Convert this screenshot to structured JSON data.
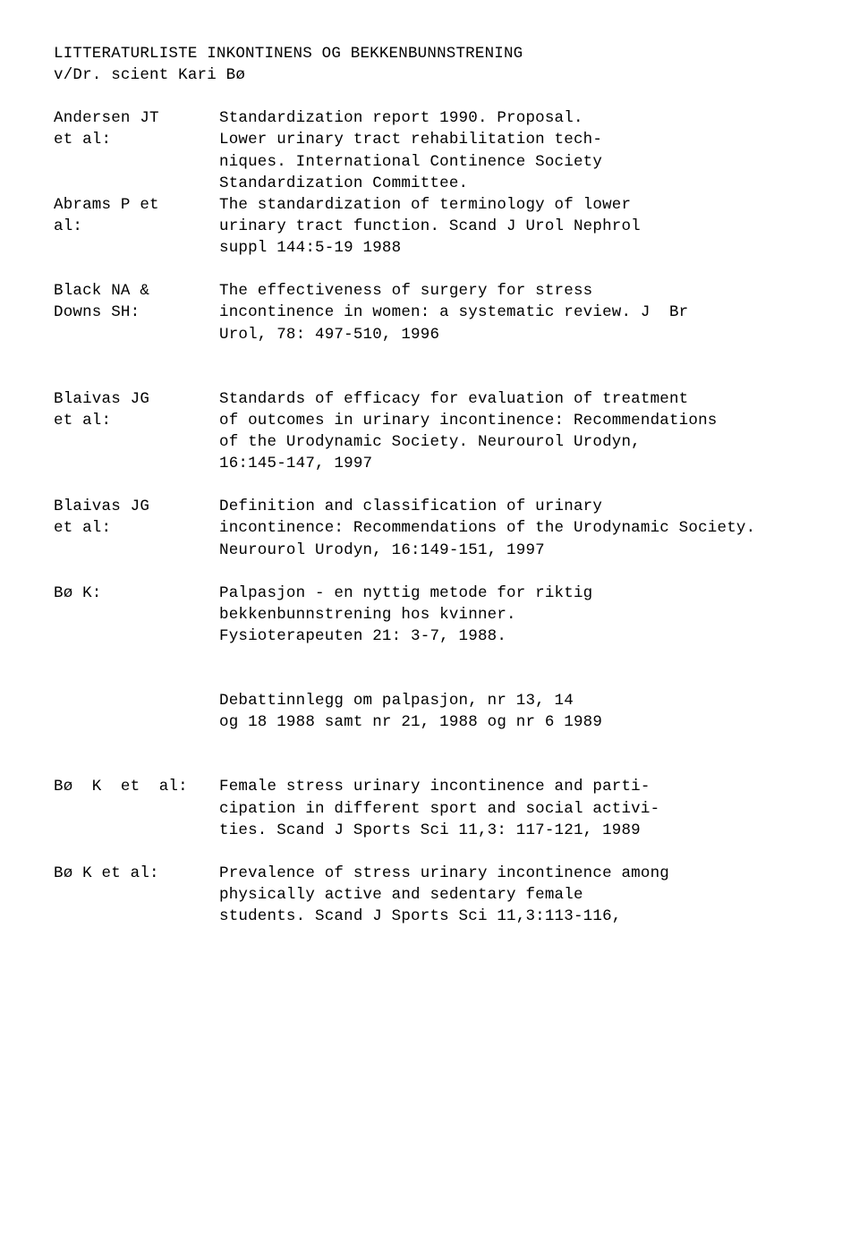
{
  "title_line1": "LITTERATURLISTE INKONTINENS OG BEKKENBUNNSTRENING",
  "title_line2": "v/Dr. scient Kari Bø",
  "entries": [
    {
      "author": "Andersen JT\net al:",
      "desc": "Standardization report 1990. Proposal.\nLower urinary tract rehabilitation tech-\nniques. International Continence Society\nStandardization Committee."
    },
    {
      "author": "Abrams P et\nal:",
      "desc": "The standardization of terminology of lower\nurinary tract function. Scand J Urol Nephrol\nsuppl 144:5-19 1988"
    },
    {
      "author": "Black NA &\nDowns SH:",
      "desc": "The effectiveness of surgery for stress\nincontinence in women: a systematic review. J  Br\nUrol, 78: 497-510, 1996"
    },
    {
      "author": "Blaivas JG\net al:",
      "desc": "Standards of efficacy for evaluation of treatment\nof outcomes in urinary incontinence: Recommendations\nof the Urodynamic Society. Neurourol Urodyn,\n16:145-147, 1997"
    },
    {
      "author": "Blaivas JG\net al:",
      "desc": "Definition and classification of urinary\nincontinence: Recommendations of the Urodynamic Society.\nNeurourol Urodyn, 16:149-151, 1997"
    },
    {
      "author": "Bø K:",
      "desc": "Palpasjon - en nyttig metode for riktig\nbekkenbunnstrening hos kvinner.\nFysioterapeuten 21: 3-7, 1988."
    }
  ],
  "debatt": "Debattinnlegg om palpasjon, nr 13, 14\nog 18 1988 samt nr 21, 1988 og nr 6 1989",
  "entries2": [
    {
      "author": "Bø  K  et  al:",
      "desc": "Female stress urinary incontinence and parti-\ncipation in different sport and social activi-\nties. Scand J Sports Sci 11,3: 117-121, 1989"
    },
    {
      "author": "Bø K et al:",
      "desc": "Prevalence of stress urinary incontinence among\nphysically active and sedentary female\nstudents. Scand J Sports Sci 11,3:113-116,"
    }
  ]
}
